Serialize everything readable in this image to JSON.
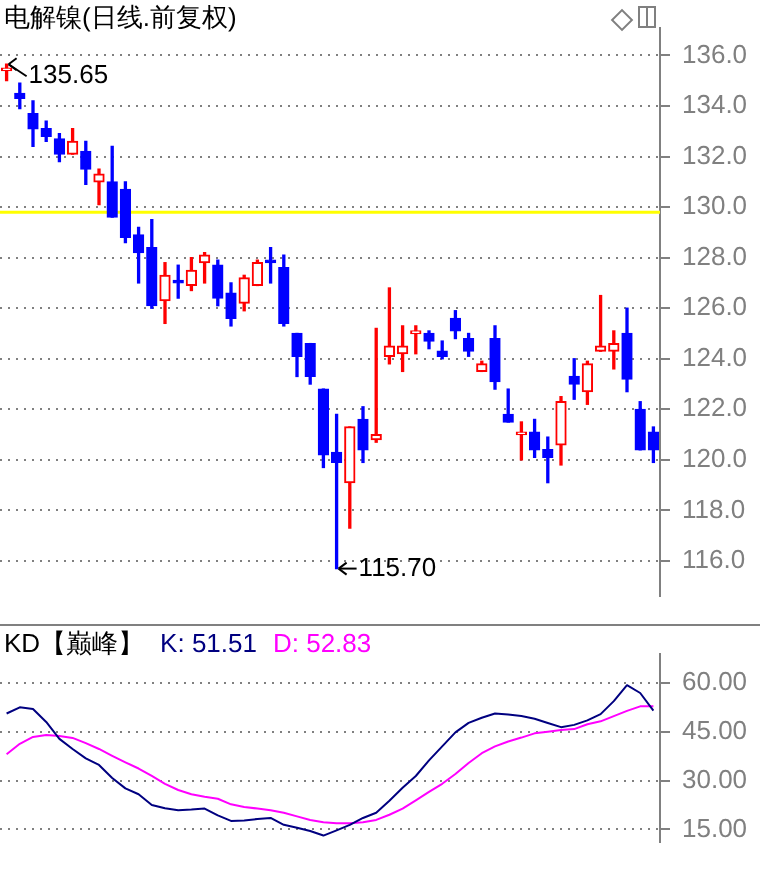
{
  "chart_data": [
    {
      "type": "candlestick",
      "title": "电解镍(日线.前复权)",
      "categories": [
        null,
        null,
        null,
        null,
        null,
        null,
        null,
        null,
        null,
        null,
        null,
        null,
        null,
        null,
        null,
        null,
        null,
        null,
        null,
        null,
        null,
        null,
        null,
        null,
        null,
        null,
        null,
        null,
        null,
        null,
        null,
        null,
        null,
        null,
        null,
        null,
        null,
        null,
        null,
        null,
        null,
        null,
        null,
        null,
        null,
        null,
        null,
        null,
        null,
        null
      ],
      "ohlc": [
        [
          135.4,
          135.65,
          135.0,
          135.5
        ],
        [
          134.5,
          134.9,
          133.9,
          134.3
        ],
        [
          133.7,
          134.2,
          132.4,
          133.1
        ],
        [
          133.1,
          133.4,
          132.6,
          132.8
        ],
        [
          132.7,
          132.9,
          131.8,
          132.1
        ],
        [
          132.1,
          133.1,
          132.1,
          132.6
        ],
        [
          132.2,
          132.6,
          130.9,
          131.5
        ],
        [
          131.0,
          131.5,
          130.1,
          131.3
        ],
        [
          131.0,
          132.4,
          129.6,
          129.6
        ],
        [
          130.7,
          131.0,
          128.6,
          128.8
        ],
        [
          128.9,
          129.2,
          127.0,
          128.2
        ],
        [
          128.4,
          129.5,
          126.0,
          126.1
        ],
        [
          126.3,
          127.8,
          125.4,
          127.3
        ],
        [
          127.1,
          127.7,
          126.4,
          127.0
        ],
        [
          126.9,
          128.0,
          126.7,
          127.5
        ],
        [
          127.8,
          128.2,
          127.0,
          128.1
        ],
        [
          127.7,
          127.9,
          126.1,
          126.4
        ],
        [
          126.6,
          127.0,
          125.3,
          125.6
        ],
        [
          126.2,
          127.3,
          125.9,
          127.2
        ],
        [
          126.9,
          127.9,
          126.9,
          127.8
        ],
        [
          127.9,
          128.4,
          127.0,
          127.8
        ],
        [
          127.6,
          128.1,
          125.3,
          125.4
        ],
        [
          125.0,
          125.0,
          123.3,
          124.1
        ],
        [
          124.6,
          124.6,
          123.0,
          123.3
        ],
        [
          122.8,
          122.8,
          119.7,
          120.2
        ],
        [
          120.3,
          121.8,
          115.7,
          119.9
        ],
        [
          119.1,
          121.3,
          117.3,
          121.3
        ],
        [
          121.6,
          122.1,
          119.9,
          120.4
        ],
        [
          120.8,
          125.2,
          120.7,
          121.0
        ],
        [
          124.1,
          126.8,
          123.8,
          124.5
        ],
        [
          124.2,
          125.3,
          123.5,
          124.5
        ],
        [
          125.0,
          125.3,
          124.2,
          125.1
        ],
        [
          125.0,
          125.1,
          124.4,
          124.7
        ],
        [
          124.3,
          124.7,
          124.0,
          124.1
        ],
        [
          125.6,
          125.9,
          124.8,
          125.1
        ],
        [
          124.8,
          125.0,
          124.1,
          124.3
        ],
        [
          123.5,
          123.9,
          123.5,
          123.8
        ],
        [
          124.8,
          125.3,
          122.8,
          123.1
        ],
        [
          121.8,
          122.8,
          121.5,
          121.5
        ],
        [
          121.0,
          121.5,
          120.0,
          121.1
        ],
        [
          121.1,
          121.6,
          120.1,
          120.4
        ],
        [
          120.4,
          120.9,
          119.1,
          120.1
        ],
        [
          120.6,
          122.5,
          119.8,
          122.3
        ],
        [
          123.3,
          124.0,
          122.4,
          123.0
        ],
        [
          122.7,
          123.9,
          122.2,
          123.8
        ],
        [
          124.3,
          126.5,
          124.3,
          124.5
        ],
        [
          124.3,
          125.1,
          123.6,
          124.6
        ],
        [
          125.0,
          126.0,
          122.7,
          123.2
        ],
        [
          122.0,
          122.3,
          120.4,
          120.4
        ],
        [
          121.1,
          121.3,
          119.9,
          120.4
        ]
      ],
      "colors": [
        "#ff0000",
        "#0000ff",
        "#0000ff",
        "#0000ff",
        "#0000ff",
        "#ff0000",
        "#0000ff",
        "#ff0000",
        "#0000ff",
        "#0000ff",
        "#0000ff",
        "#0000ff",
        "#ff0000",
        "#0000ff",
        "#ff0000",
        "#ff0000",
        "#0000ff",
        "#0000ff",
        "#ff0000",
        "#ff0000",
        "#0000ff",
        "#0000ff",
        "#0000ff",
        "#0000ff",
        "#0000ff",
        "#0000ff",
        "#ff0000",
        "#0000ff",
        "#ff0000",
        "#ff0000",
        "#ff0000",
        "#ff0000",
        "#0000ff",
        "#0000ff",
        "#0000ff",
        "#0000ff",
        "#ff0000",
        "#0000ff",
        "#0000ff",
        "#ff0000",
        "#0000ff",
        "#0000ff",
        "#ff0000",
        "#0000ff",
        "#ff0000",
        "#ff0000",
        "#ff0000",
        "#0000ff",
        "#0000ff",
        "#0000ff"
      ],
      "ylim": [
        114.6,
        137.1
      ],
      "yticks": [
        {
          "value": 116,
          "label": "116.0"
        },
        {
          "value": 118,
          "label": "118.0"
        },
        {
          "value": 120,
          "label": "120.0"
        },
        {
          "value": 122,
          "label": "122.0"
        },
        {
          "value": 124,
          "label": "124.0"
        },
        {
          "value": 126,
          "label": "126.0"
        },
        {
          "value": 128,
          "label": "128.0"
        },
        {
          "value": 130,
          "label": "130.0"
        },
        {
          "value": 132,
          "label": "132.0"
        },
        {
          "value": 134,
          "label": "134.0"
        },
        {
          "value": 136,
          "label": "136.0"
        }
      ],
      "grid": "y",
      "tick_labels": "y",
      "ref_lines": [
        {
          "axis": "y",
          "value": 129.8,
          "label": null,
          "color": "#ffff00"
        }
      ],
      "annotations": [
        "135.65",
        "115.70"
      ]
    },
    {
      "type": "line",
      "title": "KD【巅峰】",
      "categories": [
        null,
        null,
        null,
        null,
        null,
        null,
        null,
        null,
        null,
        null,
        null,
        null,
        null,
        null,
        null,
        null,
        null,
        null,
        null,
        null,
        null,
        null,
        null,
        null,
        null,
        null,
        null,
        null,
        null,
        null,
        null,
        null,
        null,
        null,
        null,
        null,
        null,
        null,
        null,
        null,
        null,
        null,
        null,
        null,
        null,
        null,
        null,
        null,
        null,
        null
      ],
      "series": [
        {
          "name": "K: 51.51",
          "color": "#000080",
          "values": [
            50.6,
            52.5,
            52.0,
            48.0,
            42.8,
            39.7,
            36.8,
            34.8,
            30.8,
            27.6,
            25.8,
            22.5,
            21.5,
            20.9,
            21.1,
            21.4,
            19.3,
            17.6,
            17.7,
            18.2,
            18.5,
            16.4,
            15.5,
            14.5,
            13.1,
            14.7,
            16.4,
            18.5,
            20.1,
            23.8,
            27.8,
            31.4,
            36.2,
            40.5,
            44.8,
            47.7,
            49.3,
            50.6,
            50.3,
            49.8,
            49.0,
            47.7,
            46.4,
            47.1,
            48.5,
            50.4,
            54.4,
            59.3,
            56.9,
            51.5
          ]
        },
        {
          "name": "D: 52.83",
          "color": "#ff00ff",
          "values": [
            38.1,
            41.3,
            43.4,
            44.0,
            43.7,
            43.1,
            41.5,
            39.7,
            37.6,
            35.6,
            33.7,
            31.4,
            29.0,
            27.1,
            25.8,
            25.0,
            24.4,
            22.7,
            21.9,
            21.4,
            20.9,
            20.1,
            19.0,
            17.9,
            17.2,
            16.9,
            16.9,
            17.2,
            17.9,
            19.5,
            21.4,
            23.9,
            26.5,
            29.0,
            32.0,
            35.4,
            38.4,
            40.5,
            42.0,
            43.2,
            44.5,
            45.0,
            45.5,
            45.8,
            47.3,
            48.2,
            49.8,
            51.4,
            52.8,
            52.8
          ]
        }
      ],
      "ylim": [
        11,
        69
      ],
      "yticks": [
        {
          "value": 15,
          "label": "15.00"
        },
        {
          "value": 30,
          "label": "30.00"
        },
        {
          "value": 45,
          "label": "45.00"
        },
        {
          "value": 60,
          "label": "60.00"
        }
      ],
      "grid": "y",
      "tick_labels": "y",
      "legend": "top left"
    }
  ]
}
